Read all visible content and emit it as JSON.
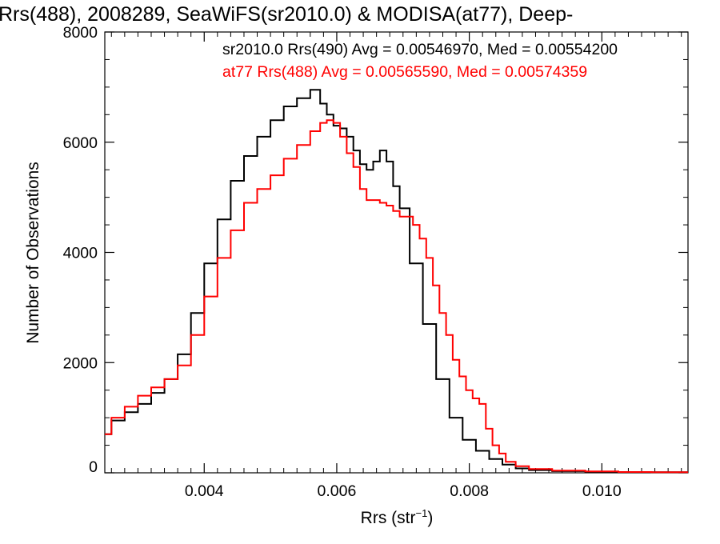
{
  "chart_data": {
    "type": "line",
    "title": "Rrs(488), 2008289, SeaWiFS(sr2010.0) & MODISA(at77), Deep-",
    "xlabel": "Rrs (str",
    "xlabel_sup": "−1",
    "xlabel_close": ")",
    "ylabel": "Number of Observations",
    "xlim": [
      0.0025,
      0.0113
    ],
    "ylim": [
      0,
      8000
    ],
    "xticks": [
      0.004,
      0.006,
      0.008,
      0.01
    ],
    "xtick_labels": [
      "0.004",
      "0.006",
      "0.008",
      "0.010"
    ],
    "yticks": [
      0,
      2000,
      4000,
      6000,
      8000
    ],
    "ytick_labels": [
      "0",
      "2000",
      "4000",
      "6000",
      "8000"
    ],
    "grid": false,
    "legend_position": "top",
    "series": [
      {
        "name": "sr2010.0 Rrs(490) Avg = 0.00546970, Med = 0.00554200",
        "color": "#000000",
        "x": [
          0.0025,
          0.0027,
          0.0029,
          0.0031,
          0.0033,
          0.0035,
          0.0037,
          0.0039,
          0.0041,
          0.0043,
          0.0045,
          0.0047,
          0.0049,
          0.0051,
          0.0053,
          0.0055,
          0.0057,
          0.0058,
          0.0059,
          0.006,
          0.0061,
          0.0062,
          0.0063,
          0.0064,
          0.0065,
          0.0066,
          0.0067,
          0.0068,
          0.0069,
          0.007,
          0.0072,
          0.0074,
          0.0076,
          0.0078,
          0.008,
          0.0082,
          0.0084,
          0.0086,
          0.0088,
          0.009,
          0.0095,
          0.01,
          0.0105,
          0.011,
          0.0113
        ],
        "y": [
          700,
          950,
          1100,
          1250,
          1450,
          1700,
          2150,
          2900,
          3800,
          4600,
          5300,
          5750,
          6100,
          6400,
          6650,
          6800,
          6950,
          6700,
          6500,
          6300,
          6250,
          6100,
          5850,
          5600,
          5500,
          5650,
          5850,
          5650,
          5200,
          4800,
          3800,
          2700,
          1700,
          1000,
          600,
          400,
          250,
          150,
          80,
          50,
          30,
          20,
          15,
          10,
          10
        ]
      },
      {
        "name": "at77 Rrs(488) Avg = 0.00565590, Med = 0.00574359",
        "color": "#ff0000",
        "x": [
          0.0025,
          0.0027,
          0.0029,
          0.0031,
          0.0033,
          0.0035,
          0.0037,
          0.0039,
          0.0041,
          0.0043,
          0.0045,
          0.0047,
          0.0049,
          0.0051,
          0.0053,
          0.0055,
          0.0057,
          0.0058,
          0.0059,
          0.006,
          0.0061,
          0.0062,
          0.0063,
          0.0064,
          0.0065,
          0.0066,
          0.0067,
          0.0068,
          0.0069,
          0.007,
          0.0071,
          0.0072,
          0.0073,
          0.0074,
          0.0075,
          0.0076,
          0.0077,
          0.0078,
          0.0079,
          0.008,
          0.0081,
          0.0082,
          0.0083,
          0.0084,
          0.0085,
          0.0086,
          0.0088,
          0.009,
          0.0095,
          0.01,
          0.0105,
          0.011,
          0.0113
        ],
        "y": [
          700,
          1000,
          1200,
          1400,
          1550,
          1700,
          1950,
          2500,
          3200,
          3900,
          4400,
          4900,
          5150,
          5400,
          5700,
          5950,
          6200,
          6350,
          6400,
          6350,
          6100,
          5800,
          5550,
          5150,
          4950,
          4950,
          4900,
          4850,
          4750,
          4650,
          4650,
          4500,
          4250,
          3900,
          3400,
          2900,
          2500,
          2050,
          1750,
          1500,
          1350,
          1250,
          800,
          500,
          350,
          200,
          120,
          70,
          40,
          25,
          15,
          10,
          10
        ]
      }
    ]
  }
}
